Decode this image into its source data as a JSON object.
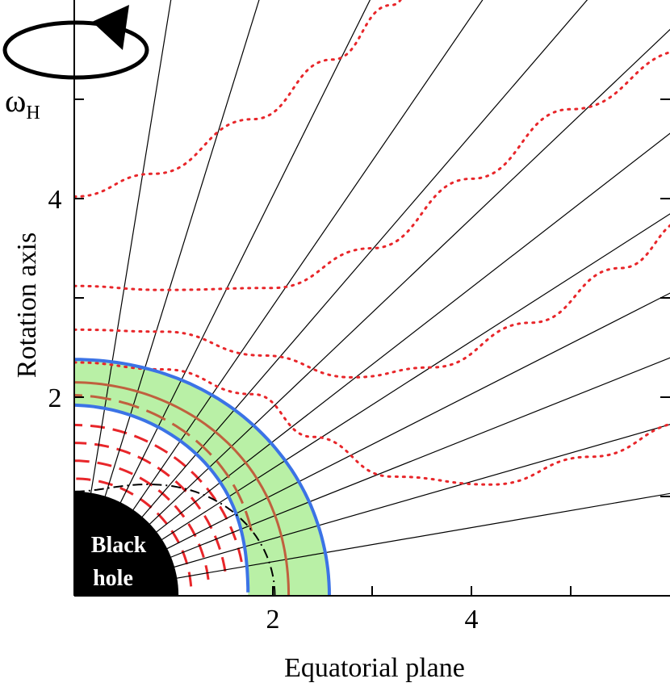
{
  "labels": {
    "y_axis": "Rotation axis",
    "x_axis": "Equatorial plane",
    "omega_main": "ω",
    "omega_sub": "H",
    "black_hole_line1": "Black",
    "black_hole_line2": "hole"
  },
  "x_ticks": [
    {
      "value": 2,
      "label": "2"
    },
    {
      "value": 4,
      "label": "4"
    }
  ],
  "y_ticks": [
    {
      "value": 2,
      "label": "2"
    },
    {
      "value": 4,
      "label": "4"
    }
  ],
  "axis_ranges": {
    "x": [
      0,
      6
    ],
    "y": [
      0,
      6
    ]
  },
  "colors": {
    "field_line": "#000000",
    "dotted": "#e8262a",
    "dashed": "#e8262a",
    "band_fill": "#b9f0a6",
    "band_edge": "#3b73e6",
    "band_center": "#c0603e",
    "black_hole": "#000000",
    "ergosphere": "#000000"
  }
}
